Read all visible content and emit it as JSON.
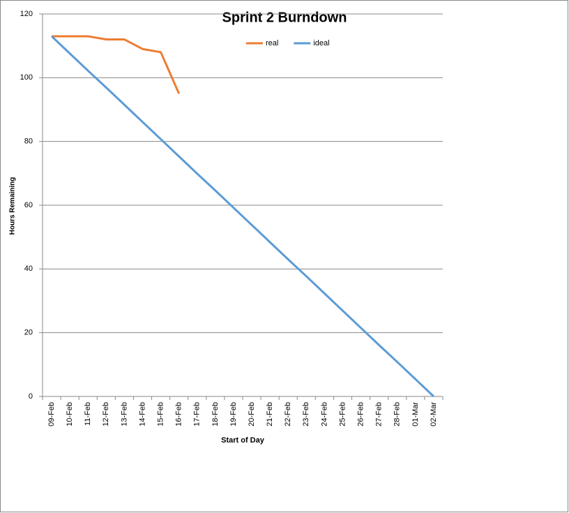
{
  "chart_data": {
    "type": "line",
    "title": "Sprint 2 Burndown",
    "xlabel": "Start of Day",
    "ylabel": "Hours Remaining",
    "categories": [
      "09-Feb",
      "10-Feb",
      "11-Feb",
      "12-Feb",
      "13-Feb",
      "14-Feb",
      "15-Feb",
      "16-Feb",
      "17-Feb",
      "18-Feb",
      "19-Feb",
      "20-Feb",
      "21-Feb",
      "22-Feb",
      "23-Feb",
      "24-Feb",
      "25-Feb",
      "26-Feb",
      "27-Feb",
      "28-Feb",
      "01-Mar",
      "02-Mar"
    ],
    "series": [
      {
        "name": "real",
        "color": "#ed7d31",
        "values": [
          113,
          113,
          113,
          112,
          112,
          109,
          108,
          95,
          null,
          null,
          null,
          null,
          null,
          null,
          null,
          null,
          null,
          null,
          null,
          null,
          null,
          null
        ]
      },
      {
        "name": "ideal",
        "color": "#5b9bd5",
        "values": [
          113,
          107.6,
          102.2,
          96.9,
          91.5,
          86.1,
          80.7,
          75.3,
          69.9,
          64.6,
          59.2,
          53.8,
          48.4,
          43.0,
          37.7,
          32.3,
          26.9,
          21.5,
          16.1,
          10.8,
          5.4,
          0
        ]
      }
    ],
    "ylim": [
      0,
      120
    ],
    "yticks": [
      0,
      20,
      40,
      60,
      80,
      100,
      120
    ],
    "grid": true,
    "legend": "top"
  }
}
